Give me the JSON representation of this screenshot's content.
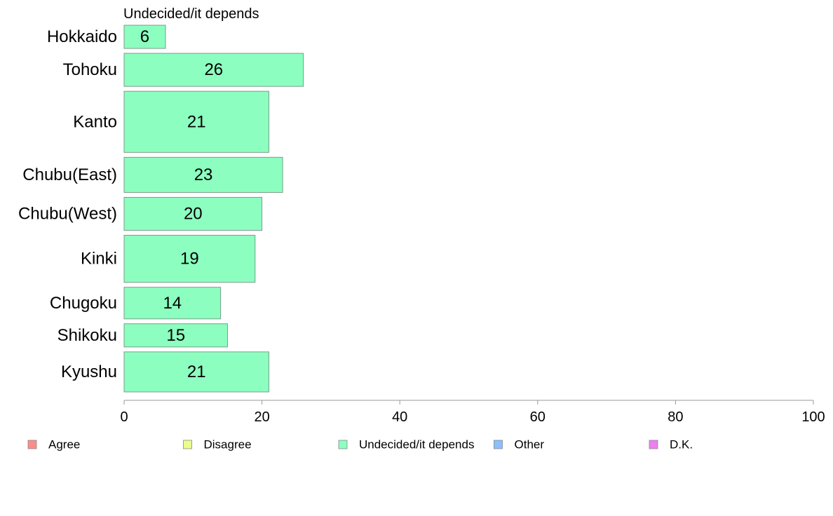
{
  "chart_data": {
    "type": "bar",
    "orientation": "horizontal",
    "subtitle": "Undecided/it depends",
    "categories": [
      "Hokkaido",
      "Tohoku",
      "Kanto",
      "Chubu(East)",
      "Chubu(West)",
      "Kinki",
      "Chugoku",
      "Shikoku",
      "Kyushu"
    ],
    "values": [
      6,
      26,
      21,
      23,
      20,
      19,
      14,
      15,
      21
    ],
    "bar_thickness_weights": [
      33,
      47,
      87,
      50,
      47,
      67,
      45,
      33,
      57
    ],
    "xlim": [
      0,
      100
    ],
    "xticks": [
      0,
      20,
      40,
      60,
      80,
      100
    ],
    "bar_color": "#8cffc0",
    "bar_stroke": "#7a9c88",
    "grid": false,
    "legend_position": "bottom",
    "legend": [
      {
        "label": "Agree",
        "color": "#ff8c8c"
      },
      {
        "label": "Disagree",
        "color": "#e8ff8c"
      },
      {
        "label": "Undecided/it depends",
        "color": "#8cffc0"
      },
      {
        "label": "Other",
        "color": "#8cbfff"
      },
      {
        "label": "D.K.",
        "color": "#ec7ff2"
      }
    ]
  }
}
